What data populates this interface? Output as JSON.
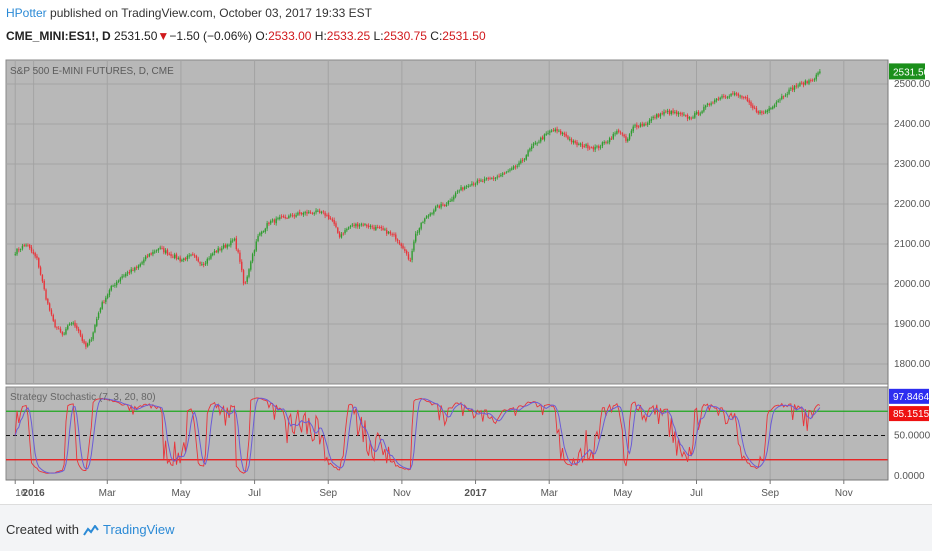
{
  "header": {
    "author": "HPotter",
    "published_text": " published on TradingView.com, October 03, 2017 19:33 EST"
  },
  "quote": {
    "symbol": "CME_MINI:ES1!",
    "interval": "D",
    "last": "2531.50",
    "change": "−1.50 (−0.06%)",
    "open_label": "O:",
    "open": "2533.00",
    "high_label": "H:",
    "high": "2533.25",
    "low_label": "L:",
    "low": "2530.75",
    "close_label": "C:",
    "close": "2531.50"
  },
  "colors": {
    "up": "#2e9c2e",
    "down": "#e8343a",
    "price_badge": "#1b8f1b",
    "k_line": "#6b5cd6",
    "d_line": "#e8343a",
    "upper_line": "#1fa81f",
    "lower_line": "#ee1111",
    "pane_bg": "#b8b8b8",
    "grid": "#a3a3a3"
  },
  "chart_data": [
    {
      "type": "candlestick",
      "title": "S&P 500 E-MINI FUTURES, D, CME",
      "ylim": [
        1750,
        2560
      ],
      "y_ticks": [
        "2500.00",
        "2400.00",
        "2300.00",
        "2200.00",
        "2100.00",
        "2000.00",
        "1900.00",
        "1800.00"
      ],
      "y_tick_values": [
        2500,
        2400,
        2300,
        2200,
        2100,
        2000,
        1900,
        1800
      ],
      "x_ticks": [
        "16",
        "2016",
        "Mar",
        "May",
        "Jul",
        "Sep",
        "Nov",
        "2017",
        "Mar",
        "May",
        "Jul",
        "Sep",
        "Nov"
      ],
      "x_tick_months": [
        -0.5,
        0,
        2,
        4,
        6,
        8,
        10,
        12,
        14,
        16,
        18,
        20,
        22
      ],
      "last_price_label": "2531.50",
      "last_price": 2531.5,
      "path": [
        {
          "m": -0.5,
          "v": 2080
        },
        {
          "m": -0.2,
          "v": 2100
        },
        {
          "m": 0.1,
          "v": 2060
        },
        {
          "m": 0.35,
          "v": 1960
        },
        {
          "m": 0.55,
          "v": 1900
        },
        {
          "m": 0.8,
          "v": 1870
        },
        {
          "m": 1.0,
          "v": 1905
        },
        {
          "m": 1.2,
          "v": 1890
        },
        {
          "m": 1.4,
          "v": 1840
        },
        {
          "m": 1.55,
          "v": 1860
        },
        {
          "m": 1.8,
          "v": 1940
        },
        {
          "m": 2.1,
          "v": 1990
        },
        {
          "m": 2.4,
          "v": 2020
        },
        {
          "m": 2.8,
          "v": 2040
        },
        {
          "m": 3.1,
          "v": 2070
        },
        {
          "m": 3.4,
          "v": 2090
        },
        {
          "m": 3.7,
          "v": 2075
        },
        {
          "m": 4.0,
          "v": 2060
        },
        {
          "m": 4.3,
          "v": 2070
        },
        {
          "m": 4.6,
          "v": 2050
        },
        {
          "m": 4.9,
          "v": 2080
        },
        {
          "m": 5.2,
          "v": 2095
        },
        {
          "m": 5.45,
          "v": 2110
        },
        {
          "m": 5.6,
          "v": 2060
        },
        {
          "m": 5.72,
          "v": 1990
        },
        {
          "m": 5.9,
          "v": 2060
        },
        {
          "m": 6.1,
          "v": 2120
        },
        {
          "m": 6.4,
          "v": 2155
        },
        {
          "m": 6.8,
          "v": 2165
        },
        {
          "m": 7.2,
          "v": 2175
        },
        {
          "m": 7.6,
          "v": 2180
        },
        {
          "m": 7.9,
          "v": 2175
        },
        {
          "m": 8.1,
          "v": 2160
        },
        {
          "m": 8.3,
          "v": 2120
        },
        {
          "m": 8.6,
          "v": 2145
        },
        {
          "m": 8.9,
          "v": 2150
        },
        {
          "m": 9.3,
          "v": 2140
        },
        {
          "m": 9.6,
          "v": 2130
        },
        {
          "m": 9.85,
          "v": 2115
        },
        {
          "m": 10.1,
          "v": 2085
        },
        {
          "m": 10.2,
          "v": 2050
        },
        {
          "m": 10.35,
          "v": 2120
        },
        {
          "m": 10.6,
          "v": 2160
        },
        {
          "m": 10.9,
          "v": 2190
        },
        {
          "m": 11.2,
          "v": 2200
        },
        {
          "m": 11.5,
          "v": 2230
        },
        {
          "m": 11.8,
          "v": 2250
        },
        {
          "m": 12.1,
          "v": 2255
        },
        {
          "m": 12.5,
          "v": 2265
        },
        {
          "m": 12.9,
          "v": 2280
        },
        {
          "m": 13.2,
          "v": 2300
        },
        {
          "m": 13.5,
          "v": 2340
        },
        {
          "m": 13.8,
          "v": 2365
        },
        {
          "m": 14.1,
          "v": 2385
        },
        {
          "m": 14.4,
          "v": 2375
        },
        {
          "m": 14.7,
          "v": 2350
        },
        {
          "m": 15.0,
          "v": 2345
        },
        {
          "m": 15.3,
          "v": 2340
        },
        {
          "m": 15.6,
          "v": 2360
        },
        {
          "m": 15.9,
          "v": 2385
        },
        {
          "m": 16.1,
          "v": 2355
        },
        {
          "m": 16.3,
          "v": 2395
        },
        {
          "m": 16.6,
          "v": 2400
        },
        {
          "m": 16.9,
          "v": 2420
        },
        {
          "m": 17.2,
          "v": 2430
        },
        {
          "m": 17.5,
          "v": 2425
        },
        {
          "m": 17.8,
          "v": 2415
        },
        {
          "m": 18.1,
          "v": 2430
        },
        {
          "m": 18.4,
          "v": 2455
        },
        {
          "m": 18.7,
          "v": 2470
        },
        {
          "m": 19.0,
          "v": 2475
        },
        {
          "m": 19.3,
          "v": 2465
        },
        {
          "m": 19.5,
          "v": 2440
        },
        {
          "m": 19.8,
          "v": 2425
        },
        {
          "m": 20.1,
          "v": 2450
        },
        {
          "m": 20.4,
          "v": 2475
        },
        {
          "m": 20.7,
          "v": 2495
        },
        {
          "m": 21.0,
          "v": 2505
        },
        {
          "m": 21.2,
          "v": 2515
        },
        {
          "m": 21.35,
          "v": 2531.5
        }
      ]
    },
    {
      "type": "line",
      "title": "Strategy Stochastic (7, 3, 20, 80)",
      "ylim": [
        -5,
        110
      ],
      "y_ticks": [
        "50.0000",
        "0.0000"
      ],
      "y_tick_values": [
        50,
        0
      ],
      "upper_level": 80,
      "lower_level": 20,
      "mid_level": 50,
      "series": [
        {
          "name": "",
          "last_value": "97.8464",
          "last": 97.8464
        },
        {
          "name": "",
          "last_value": "85.1515",
          "last": 85.1515
        }
      ]
    }
  ],
  "footer": {
    "created_with": "Created with",
    "brand": "TradingView"
  }
}
